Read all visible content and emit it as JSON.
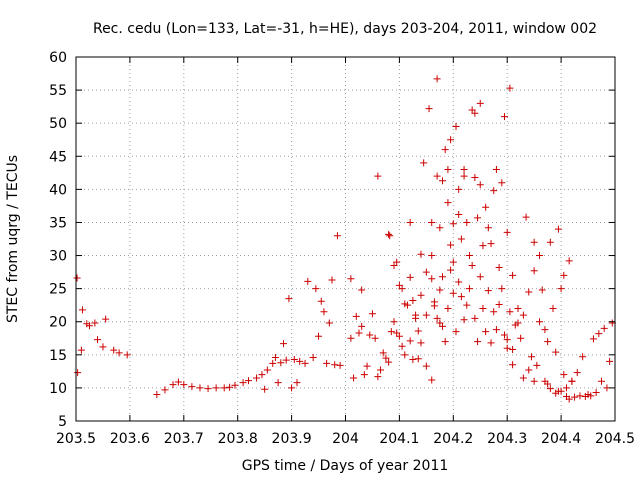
{
  "chart_data": {
    "type": "scatter",
    "title": "Rec. cedu (Lon=133, Lat=-31, h=HE), days 203-204, 2011, window 002",
    "xlabel": "GPS time / Days of year 2011",
    "ylabel": "STEC from uqrg / TECUs",
    "xlim": [
      203.5,
      204.5
    ],
    "ylim": [
      5,
      60
    ],
    "xticks": [
      203.5,
      203.6,
      203.7,
      203.8,
      203.9,
      204,
      204.1,
      204.2,
      204.3,
      204.4,
      204.5
    ],
    "xtick_labels": [
      "203.5",
      "203.6",
      "203.7",
      "203.8",
      "203.9",
      "204",
      "204.1",
      "204.2",
      "204.3",
      "204.4",
      "204.5"
    ],
    "yticks": [
      5,
      10,
      15,
      20,
      25,
      30,
      35,
      40,
      45,
      50,
      55,
      60
    ],
    "ytick_labels": [
      "5",
      "10",
      "15",
      "20",
      "25",
      "30",
      "35",
      "40",
      "45",
      "50",
      "55",
      "60"
    ],
    "grid": true,
    "marker": "+",
    "color": "#cc0000",
    "series": [
      {
        "name": "STEC",
        "points": [
          [
            203.502,
            26.6
          ],
          [
            203.503,
            12.3
          ],
          [
            203.51,
            15.7
          ],
          [
            203.512,
            21.8
          ],
          [
            203.52,
            19.7
          ],
          [
            203.525,
            19.4
          ],
          [
            203.535,
            19.8
          ],
          [
            203.54,
            17.3
          ],
          [
            203.55,
            16.2
          ],
          [
            203.555,
            20.4
          ],
          [
            203.57,
            15.7
          ],
          [
            203.58,
            15.3
          ],
          [
            203.595,
            15.0
          ],
          [
            203.65,
            9.0
          ],
          [
            203.665,
            9.7
          ],
          [
            203.68,
            10.5
          ],
          [
            203.69,
            10.9
          ],
          [
            203.7,
            10.5
          ],
          [
            203.715,
            10.2
          ],
          [
            203.73,
            10.0
          ],
          [
            203.745,
            9.9
          ],
          [
            203.76,
            10.0
          ],
          [
            203.775,
            10.0
          ],
          [
            203.785,
            10.1
          ],
          [
            203.795,
            10.4
          ],
          [
            203.81,
            10.8
          ],
          [
            203.82,
            11.1
          ],
          [
            203.835,
            11.5
          ],
          [
            203.845,
            12.0
          ],
          [
            203.85,
            9.8
          ],
          [
            203.855,
            12.7
          ],
          [
            203.865,
            13.7
          ],
          [
            203.87,
            14.6
          ],
          [
            203.875,
            10.8
          ],
          [
            203.88,
            13.8
          ],
          [
            203.885,
            16.7
          ],
          [
            203.89,
            14.2
          ],
          [
            203.895,
            23.5
          ],
          [
            203.9,
            10.0
          ],
          [
            203.905,
            14.3
          ],
          [
            203.91,
            10.8
          ],
          [
            203.915,
            14.0
          ],
          [
            203.925,
            13.7
          ],
          [
            203.93,
            26.1
          ],
          [
            203.94,
            14.6
          ],
          [
            203.945,
            25.0
          ],
          [
            203.95,
            17.8
          ],
          [
            203.955,
            23.1
          ],
          [
            203.96,
            21.5
          ],
          [
            203.965,
            13.7
          ],
          [
            203.97,
            19.8
          ],
          [
            203.975,
            26.3
          ],
          [
            203.98,
            13.5
          ],
          [
            203.985,
            33.0
          ],
          [
            203.99,
            13.4
          ],
          [
            204.01,
            26.5
          ],
          [
            204.01,
            17.5
          ],
          [
            204.015,
            11.5
          ],
          [
            204.02,
            20.8
          ],
          [
            204.025,
            18.3
          ],
          [
            204.03,
            24.8
          ],
          [
            204.03,
            19.3
          ],
          [
            204.035,
            12.0
          ],
          [
            204.04,
            13.3
          ],
          [
            204.045,
            18.0
          ],
          [
            204.05,
            21.2
          ],
          [
            204.055,
            17.5
          ],
          [
            204.06,
            11.7
          ],
          [
            204.065,
            12.7
          ],
          [
            204.07,
            15.3
          ],
          [
            204.075,
            14.5
          ],
          [
            204.08,
            13.9
          ],
          [
            204.085,
            18.5
          ],
          [
            204.09,
            20.0
          ],
          [
            204.095,
            18.3
          ],
          [
            204.1,
            17.8
          ],
          [
            204.105,
            16.3
          ],
          [
            204.11,
            15.0
          ],
          [
            204.12,
            17.1
          ],
          [
            204.125,
            14.3
          ],
          [
            204.13,
            20.5
          ],
          [
            204.135,
            14.4
          ],
          [
            204.14,
            16.8
          ],
          [
            204.15,
            13.3
          ],
          [
            204.16,
            11.2
          ],
          [
            204.06,
            42.0
          ],
          [
            204.08,
            33.2
          ],
          [
            204.082,
            33.0
          ],
          [
            204.09,
            28.5
          ],
          [
            204.095,
            29.0
          ],
          [
            204.1,
            25.5
          ],
          [
            204.105,
            25.0
          ],
          [
            204.11,
            22.7
          ],
          [
            204.115,
            22.5
          ],
          [
            204.12,
            35.0
          ],
          [
            204.12,
            26.7
          ],
          [
            204.125,
            23.2
          ],
          [
            204.13,
            21.0
          ],
          [
            204.135,
            18.6
          ],
          [
            204.14,
            30.2
          ],
          [
            204.14,
            24.0
          ],
          [
            204.145,
            44.0
          ],
          [
            204.15,
            27.5
          ],
          [
            204.15,
            21.0
          ],
          [
            204.155,
            52.2
          ],
          [
            204.16,
            35.0
          ],
          [
            204.16,
            30.0
          ],
          [
            204.165,
            22.4
          ],
          [
            204.17,
            56.7
          ],
          [
            204.17,
            42.0
          ],
          [
            204.175,
            34.2
          ],
          [
            204.175,
            19.8
          ],
          [
            204.18,
            41.3
          ],
          [
            204.18,
            26.8
          ],
          [
            204.185,
            46.0
          ],
          [
            204.19,
            38.0
          ],
          [
            204.19,
            43.0
          ],
          [
            204.195,
            47.5
          ],
          [
            204.195,
            31.6
          ],
          [
            204.2,
            34.8
          ],
          [
            204.2,
            29.0
          ],
          [
            204.205,
            49.5
          ],
          [
            204.21,
            40.0
          ],
          [
            204.21,
            36.2
          ],
          [
            204.215,
            32.5
          ],
          [
            204.22,
            43.0
          ],
          [
            204.22,
            42.0
          ],
          [
            204.225,
            35.0
          ],
          [
            204.23,
            30.0
          ],
          [
            204.235,
            52.0
          ],
          [
            204.24,
            51.5
          ],
          [
            204.24,
            41.8
          ],
          [
            204.245,
            35.7
          ],
          [
            204.25,
            53.0
          ],
          [
            204.25,
            40.7
          ],
          [
            204.255,
            31.5
          ],
          [
            204.26,
            37.3
          ],
          [
            204.265,
            34.2
          ],
          [
            204.27,
            31.8
          ],
          [
            204.275,
            39.8
          ],
          [
            204.28,
            43.0
          ],
          [
            204.285,
            28.2
          ],
          [
            204.29,
            41.0
          ],
          [
            204.295,
            51.0
          ],
          [
            204.3,
            33.5
          ],
          [
            204.305,
            55.3
          ],
          [
            204.31,
            27.0
          ],
          [
            204.16,
            26.5
          ],
          [
            204.165,
            23.0
          ],
          [
            204.17,
            20.5
          ],
          [
            204.175,
            24.8
          ],
          [
            204.18,
            19.3
          ],
          [
            204.185,
            17.0
          ],
          [
            204.19,
            22.0
          ],
          [
            204.195,
            27.8
          ],
          [
            204.2,
            24.3
          ],
          [
            204.205,
            18.5
          ],
          [
            204.21,
            26.0
          ],
          [
            204.215,
            23.8
          ],
          [
            204.22,
            20.3
          ],
          [
            204.225,
            22.5
          ],
          [
            204.23,
            25.0
          ],
          [
            204.235,
            28.5
          ],
          [
            204.24,
            20.5
          ],
          [
            204.245,
            17.0
          ],
          [
            204.25,
            26.8
          ],
          [
            204.255,
            22.0
          ],
          [
            204.26,
            18.5
          ],
          [
            204.265,
            24.7
          ],
          [
            204.27,
            16.8
          ],
          [
            204.275,
            21.5
          ],
          [
            204.28,
            18.8
          ],
          [
            204.285,
            22.6
          ],
          [
            204.29,
            25.0
          ],
          [
            204.295,
            18.0
          ],
          [
            204.3,
            17.3
          ],
          [
            204.305,
            21.5
          ],
          [
            204.31,
            15.8
          ],
          [
            204.315,
            19.5
          ],
          [
            204.32,
            22.0
          ],
          [
            204.325,
            17.5
          ],
          [
            204.33,
            21.0
          ],
          [
            204.335,
            35.8
          ],
          [
            204.34,
            24.5
          ],
          [
            204.345,
            14.7
          ],
          [
            204.35,
            32.0
          ],
          [
            204.35,
            27.7
          ],
          [
            204.355,
            13.4
          ],
          [
            204.36,
            30.0
          ],
          [
            204.365,
            24.8
          ],
          [
            204.37,
            18.8
          ],
          [
            204.375,
            17.0
          ],
          [
            204.38,
            32.0
          ],
          [
            204.385,
            22.0
          ],
          [
            204.39,
            15.4
          ],
          [
            204.395,
            34.0
          ],
          [
            204.4,
            25.0
          ],
          [
            204.405,
            27.0
          ],
          [
            204.41,
            10.0
          ],
          [
            204.415,
            29.2
          ],
          [
            204.42,
            11.0
          ],
          [
            204.3,
            16.0
          ],
          [
            204.31,
            13.5
          ],
          [
            204.32,
            19.8
          ],
          [
            204.33,
            11.5
          ],
          [
            204.34,
            12.7
          ],
          [
            204.35,
            11.0
          ],
          [
            204.36,
            20.0
          ],
          [
            204.37,
            11.0
          ],
          [
            204.375,
            10.6
          ],
          [
            204.38,
            9.9
          ],
          [
            204.39,
            9.2
          ],
          [
            204.395,
            9.5
          ],
          [
            204.4,
            9.5
          ],
          [
            204.405,
            12.0
          ],
          [
            204.41,
            8.7
          ],
          [
            204.415,
            8.3
          ],
          [
            204.42,
            11.0
          ],
          [
            204.425,
            8.6
          ],
          [
            204.43,
            12.3
          ],
          [
            204.435,
            8.8
          ],
          [
            204.44,
            14.7
          ],
          [
            204.445,
            8.7
          ],
          [
            204.45,
            9.0
          ],
          [
            204.455,
            8.8
          ],
          [
            204.46,
            17.4
          ],
          [
            204.465,
            9.3
          ],
          [
            204.47,
            18.2
          ],
          [
            204.475,
            11.0
          ],
          [
            204.48,
            19.0
          ],
          [
            204.485,
            10.0
          ],
          [
            204.49,
            14.0
          ],
          [
            204.495,
            19.8
          ]
        ]
      }
    ]
  }
}
